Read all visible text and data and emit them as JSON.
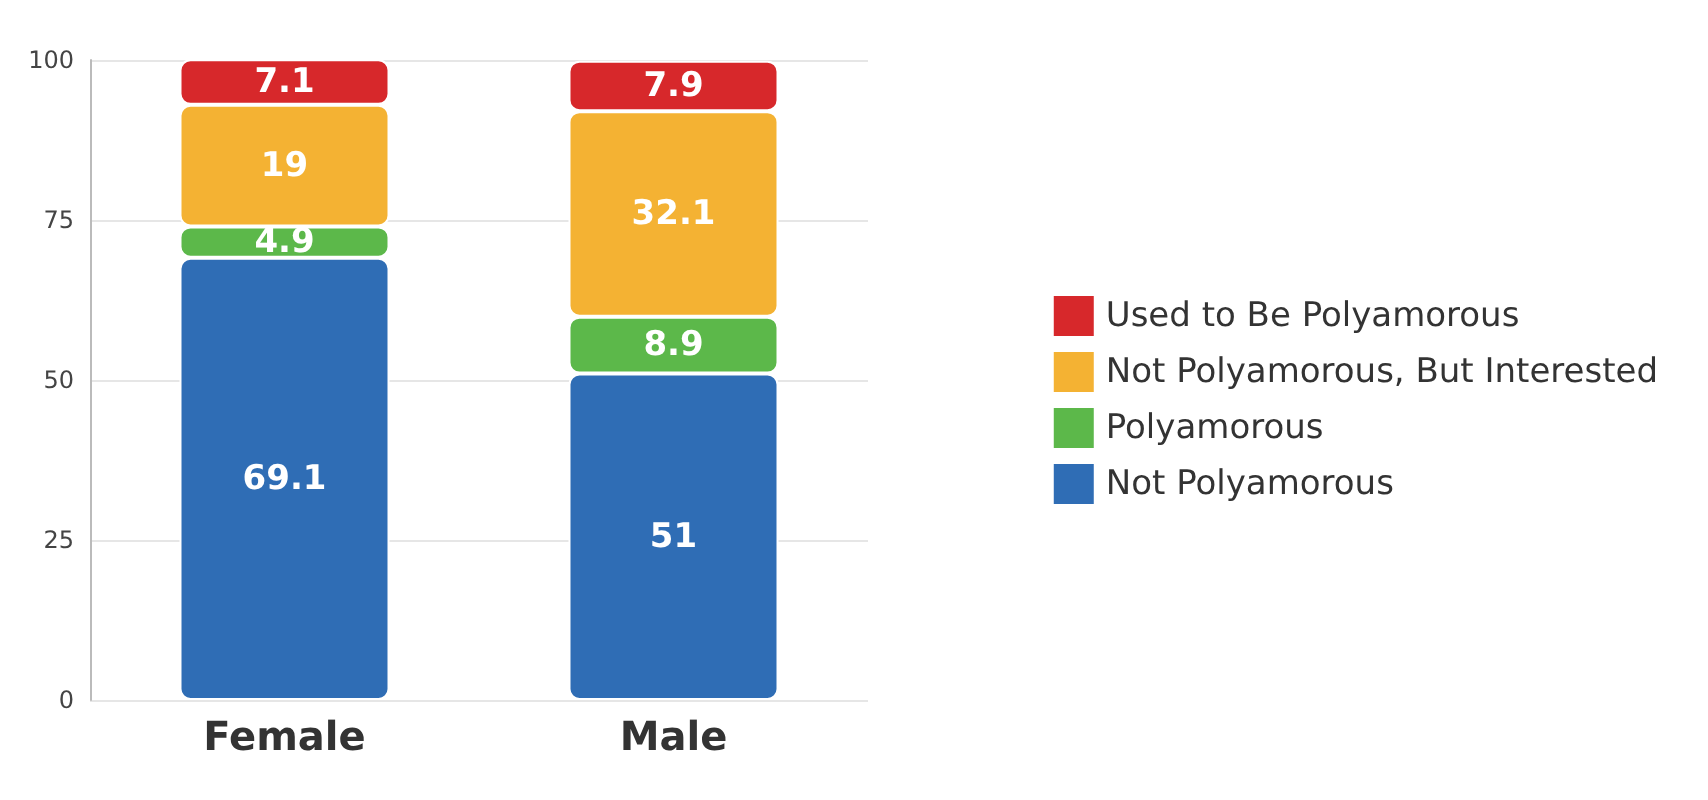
{
  "chart_data": {
    "type": "bar",
    "stacked": true,
    "categories": [
      "Female",
      "Male"
    ],
    "series": [
      {
        "name": "Not Polyamorous",
        "color": "#2f6db5",
        "values": [
          69.1,
          51
        ]
      },
      {
        "name": "Polyamorous",
        "color": "#5cb84a",
        "values": [
          4.9,
          8.9
        ]
      },
      {
        "name": "Not Polyamorous, But Interested",
        "color": "#f4b233",
        "values": [
          19,
          32.1
        ]
      },
      {
        "name": "Used to Be Polyamorous",
        "color": "#d7282b",
        "values": [
          7.1,
          7.9
        ]
      }
    ],
    "ylim": [
      0,
      100
    ],
    "yticks": [
      0,
      25,
      50,
      75,
      100
    ],
    "grid": "y",
    "legend": "right",
    "data_labels": true
  }
}
